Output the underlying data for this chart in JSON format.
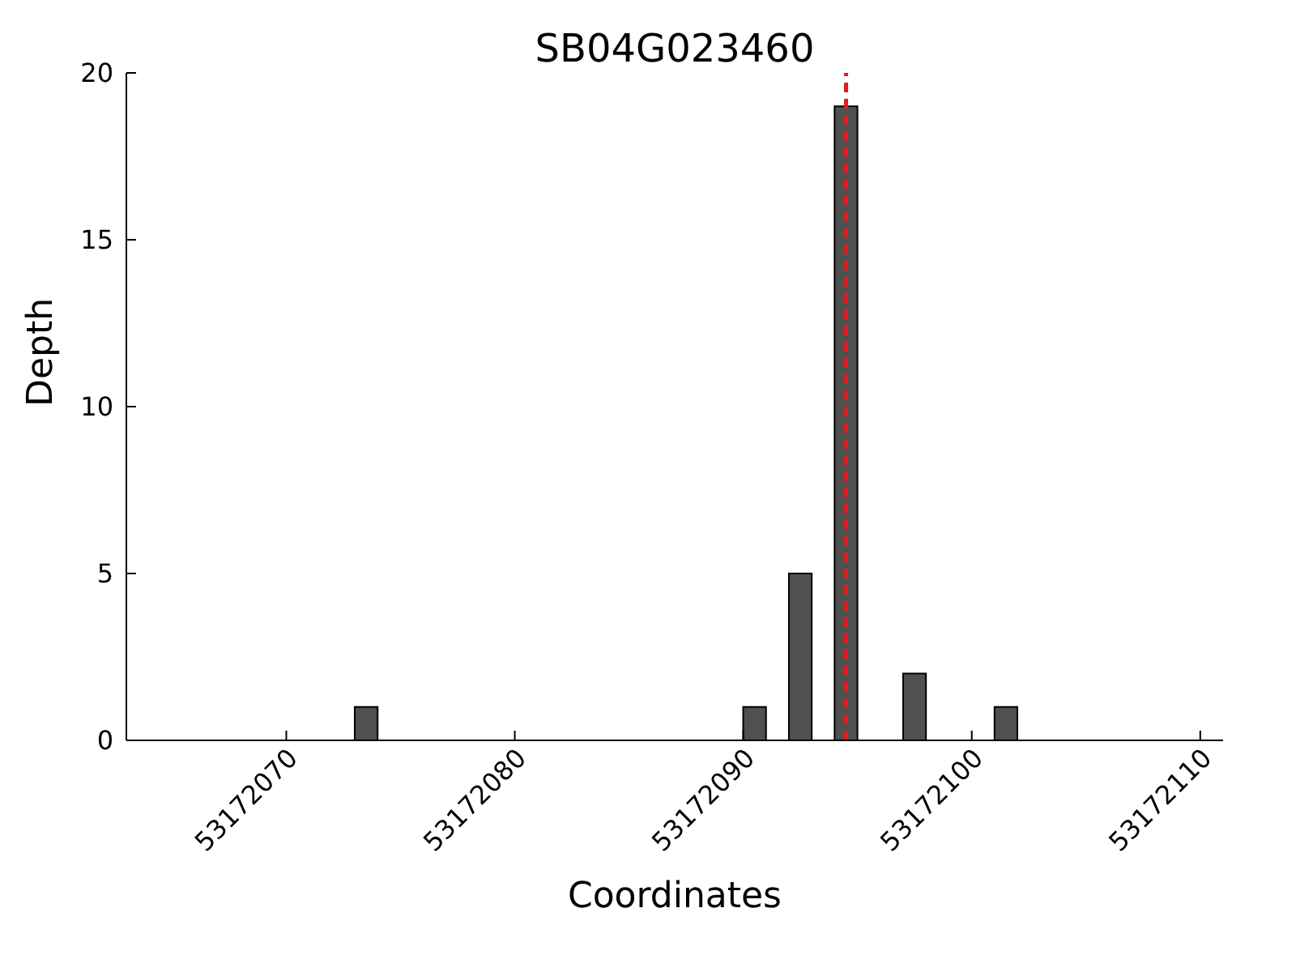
{
  "chart_data": {
    "type": "bar",
    "title": "SB04G023460",
    "xlabel": "Coordinates",
    "ylabel": "Depth",
    "x": [
      53172073.5,
      53172090.5,
      53172092.5,
      53172094.5,
      53172097.5,
      53172101.5
    ],
    "values": [
      1,
      1,
      5,
      19,
      2,
      1
    ],
    "color": "#505050",
    "xlim": [
      53172063,
      53172111
    ],
    "xticks": [
      53172070,
      53172080,
      53172090,
      53172100,
      53172110
    ],
    "ylim": [
      0,
      20
    ],
    "yticks": [
      0,
      5,
      10,
      15,
      20
    ],
    "grid": false,
    "legend": false,
    "ref_lines": [
      {
        "axis": "x",
        "value": 53172094.5,
        "color": "#e31a1c",
        "line_style": "dashed"
      }
    ]
  }
}
